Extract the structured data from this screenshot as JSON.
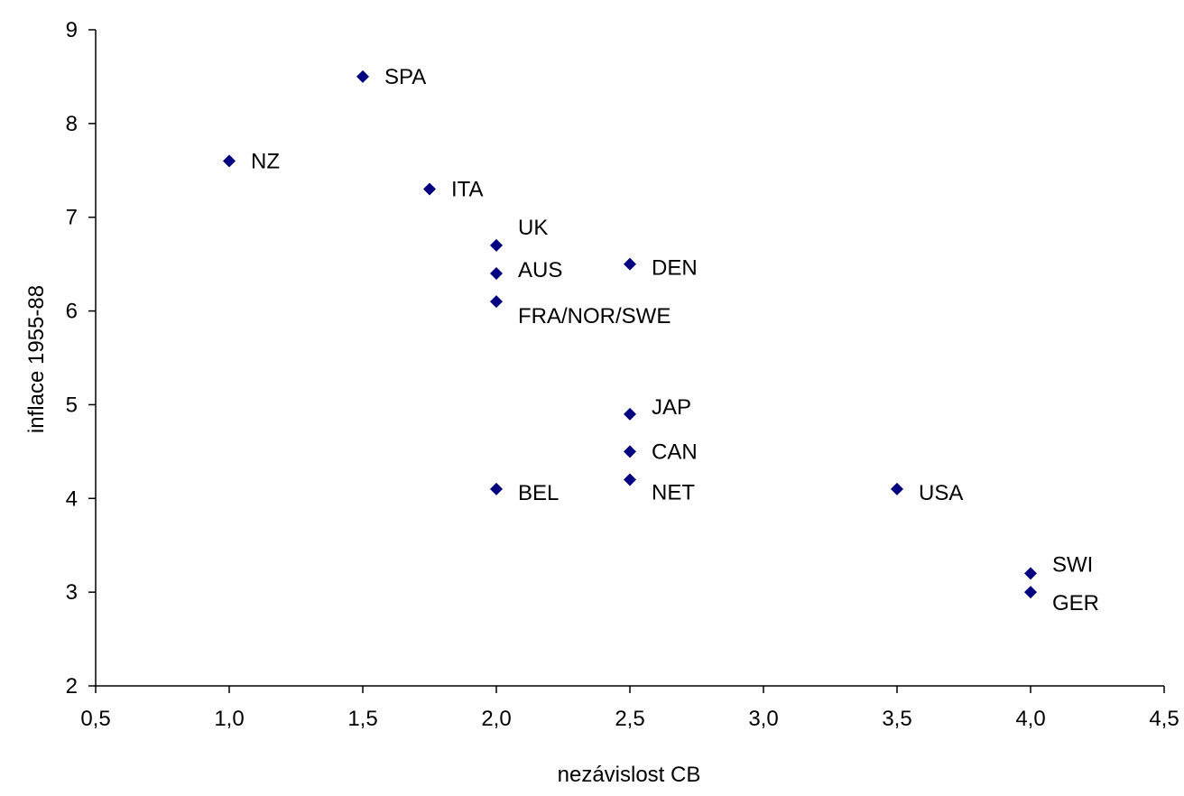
{
  "chart_data": {
    "type": "scatter",
    "title": "",
    "xlabel": "nezávislost CB",
    "ylabel": "inflace 1955-88",
    "xlim": [
      0.5,
      4.5
    ],
    "ylim": [
      2,
      9
    ],
    "x_ticks": [
      "0,5",
      "1,0",
      "1,5",
      "2,0",
      "2,5",
      "3,0",
      "3,5",
      "4,0",
      "4,5"
    ],
    "y_ticks": [
      "2",
      "3",
      "4",
      "5",
      "6",
      "7",
      "8",
      "9"
    ],
    "grid": false,
    "legend": "none",
    "marker": "diamond",
    "marker_color": "#000080",
    "points": [
      {
        "label": "SPA",
        "x": 1.5,
        "y": 8.5
      },
      {
        "label": "NZ",
        "x": 1.0,
        "y": 7.6
      },
      {
        "label": "ITA",
        "x": 1.75,
        "y": 7.3
      },
      {
        "label": "UK",
        "x": 2.0,
        "y": 6.7
      },
      {
        "label": "AUS",
        "x": 2.0,
        "y": 6.4
      },
      {
        "label": "FRA/NOR/SWE",
        "x": 2.0,
        "y": 6.1
      },
      {
        "label": "DEN",
        "x": 2.5,
        "y": 6.5
      },
      {
        "label": "JAP",
        "x": 2.5,
        "y": 4.9
      },
      {
        "label": "CAN",
        "x": 2.5,
        "y": 4.5
      },
      {
        "label": "NET",
        "x": 2.5,
        "y": 4.2
      },
      {
        "label": "BEL",
        "x": 2.0,
        "y": 4.1
      },
      {
        "label": "USA",
        "x": 3.5,
        "y": 4.1
      },
      {
        "label": "SWI",
        "x": 4.0,
        "y": 3.2
      },
      {
        "label": "GER",
        "x": 4.0,
        "y": 3.0
      }
    ]
  }
}
